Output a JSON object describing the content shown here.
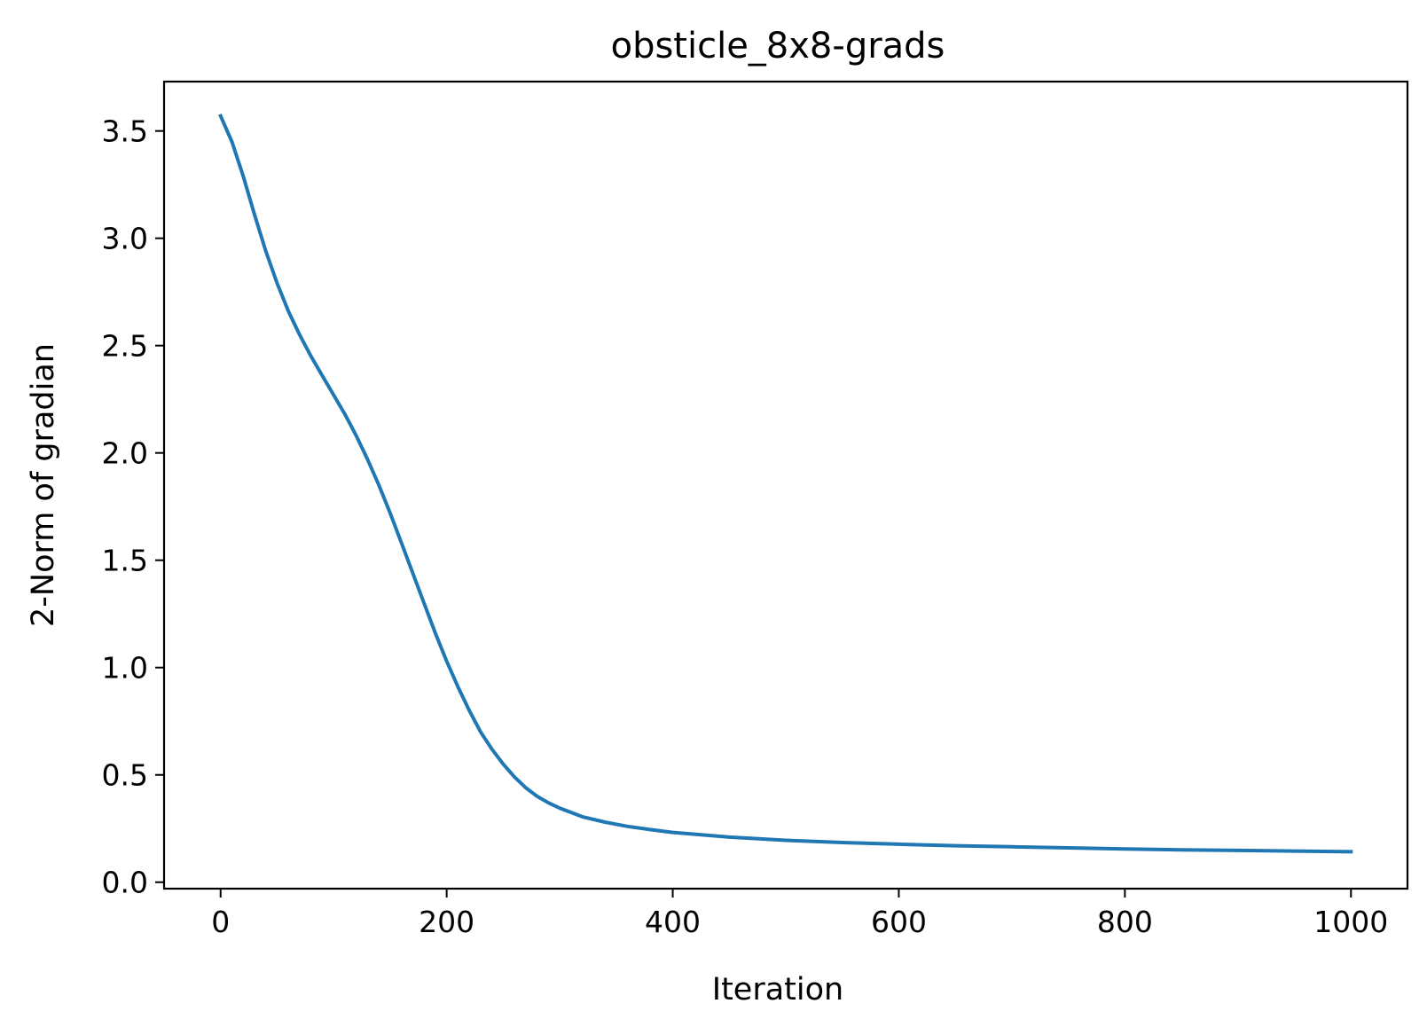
{
  "chart_data": {
    "type": "line",
    "title": "obsticle_8x8-grads",
    "xlabel": "Iteration",
    "ylabel": "2-Norm of gradian",
    "xlim": [
      -50,
      1050
    ],
    "ylim": [
      -0.03,
      3.73
    ],
    "xticks": [
      0,
      200,
      400,
      600,
      800,
      1000
    ],
    "xtick_labels": [
      "0",
      "200",
      "400",
      "600",
      "800",
      "1000"
    ],
    "yticks": [
      0.0,
      0.5,
      1.0,
      1.5,
      2.0,
      2.5,
      3.0,
      3.5
    ],
    "ytick_labels": [
      "0.0",
      "0.5",
      "1.0",
      "1.5",
      "2.0",
      "2.5",
      "3.0",
      "3.5"
    ],
    "grid": false,
    "legend": false,
    "series_color": "#1f77b4",
    "series": [
      {
        "x": [
          0,
          10,
          20,
          30,
          40,
          50,
          60,
          70,
          80,
          90,
          100,
          110,
          120,
          130,
          140,
          150,
          160,
          170,
          180,
          190,
          200,
          210,
          220,
          230,
          240,
          250,
          260,
          270,
          280,
          290,
          300,
          320,
          340,
          360,
          380,
          400,
          450,
          500,
          550,
          600,
          650,
          700,
          750,
          800,
          850,
          900,
          950,
          1000
        ],
        "y": [
          3.57,
          3.45,
          3.29,
          3.11,
          2.94,
          2.79,
          2.66,
          2.55,
          2.45,
          2.36,
          2.27,
          2.18,
          2.08,
          1.97,
          1.85,
          1.72,
          1.58,
          1.44,
          1.3,
          1.16,
          1.03,
          0.91,
          0.8,
          0.7,
          0.62,
          0.55,
          0.49,
          0.44,
          0.4,
          0.37,
          0.345,
          0.305,
          0.28,
          0.26,
          0.245,
          0.232,
          0.21,
          0.195,
          0.185,
          0.177,
          0.17,
          0.165,
          0.16,
          0.155,
          0.151,
          0.148,
          0.145,
          0.142
        ]
      }
    ]
  }
}
